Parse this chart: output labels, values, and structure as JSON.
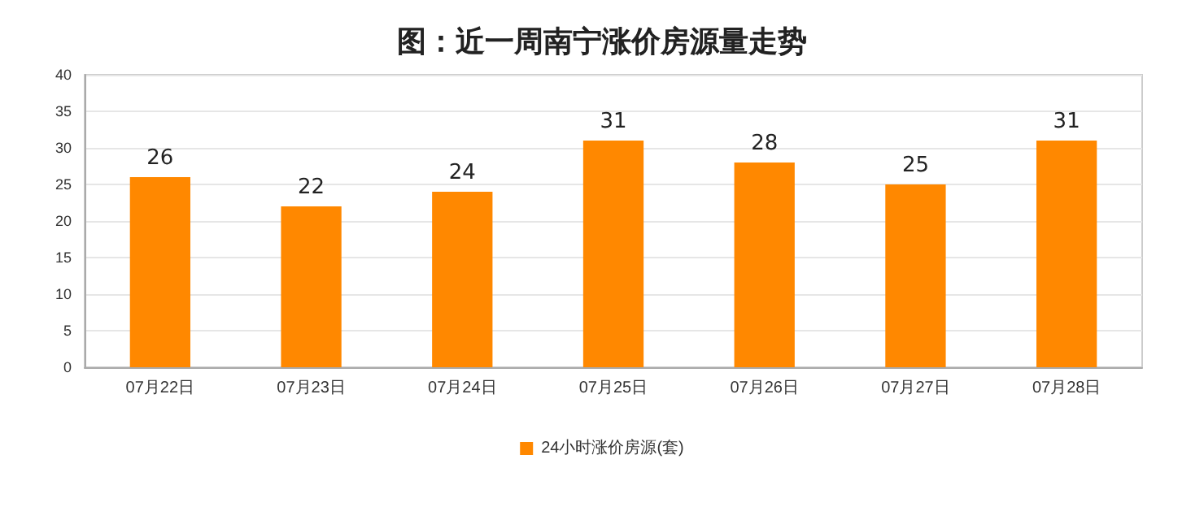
{
  "chart_data": {
    "type": "bar",
    "title": "图：近一周南宁涨价房源量走势",
    "categories": [
      "07月22日",
      "07月23日",
      "07月24日",
      "07月25日",
      "07月26日",
      "07月27日",
      "07月28日"
    ],
    "series": [
      {
        "name": "24小时涨价房源(套)",
        "color": "#ff8800",
        "values": [
          26,
          22,
          24,
          31,
          28,
          25,
          31
        ]
      }
    ],
    "ylim": [
      0,
      40
    ],
    "yticks": [
      0,
      5,
      10,
      15,
      20,
      25,
      30,
      35,
      40
    ],
    "grid": "y",
    "legend": "bottom",
    "data_labels": true
  }
}
